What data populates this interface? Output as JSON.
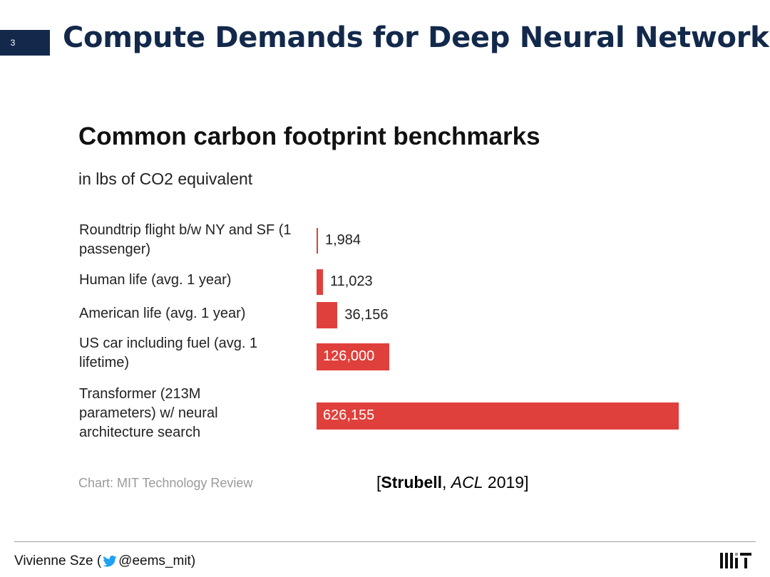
{
  "slide": {
    "number": "3",
    "title": "Compute Demands for Deep Neural Networks",
    "accent_color": "#13294b"
  },
  "chart_data": {
    "type": "bar",
    "orientation": "horizontal",
    "title": "Common carbon footprint benchmarks",
    "subtitle": "in lbs of CO2 equivalent",
    "categories": [
      "Roundtrip flight b/w NY and SF (1 passenger)",
      "Human life (avg. 1 year)",
      "American life (avg. 1 year)",
      "US car including fuel (avg. 1 lifetime)",
      "Transformer (213M parameters) w/ neural architecture search"
    ],
    "values": [
      1984,
      11023,
      36156,
      126000,
      626155
    ],
    "value_labels": [
      "1,984",
      "11,023",
      "36,156",
      "126,000",
      "626,155"
    ],
    "bar_color": "#e0403b",
    "xlim": [
      0,
      626155
    ],
    "source": "Chart: MIT Technology Review"
  },
  "citation": {
    "open": "[",
    "author": "Strubell",
    "sep": ", ",
    "venue": "ACL",
    "year": " 2019]"
  },
  "footer": {
    "presenter": "Vivienne Sze (",
    "handle": "@eems_mit)",
    "icon": "twitter-icon",
    "logo": "mit-logo"
  }
}
